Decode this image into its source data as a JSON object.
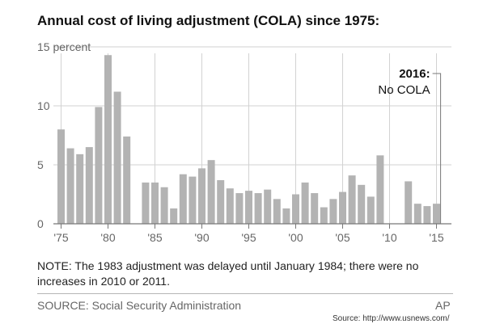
{
  "title": "Annual cost of living adjustment (COLA) since 1975:",
  "chart_data": {
    "type": "bar",
    "x": [
      1975,
      1976,
      1977,
      1978,
      1979,
      1980,
      1981,
      1982,
      1983,
      1984,
      1985,
      1986,
      1987,
      1988,
      1989,
      1990,
      1991,
      1992,
      1993,
      1994,
      1995,
      1996,
      1997,
      1998,
      1999,
      2000,
      2001,
      2002,
      2003,
      2004,
      2005,
      2006,
      2007,
      2008,
      2009,
      2010,
      2011,
      2012,
      2013,
      2014,
      2015
    ],
    "values": [
      8.0,
      6.4,
      5.9,
      6.5,
      9.9,
      14.3,
      11.2,
      7.4,
      0,
      3.5,
      3.5,
      3.1,
      1.3,
      4.2,
      4.0,
      4.7,
      5.4,
      3.7,
      3.0,
      2.6,
      2.8,
      2.6,
      2.9,
      2.1,
      1.3,
      2.5,
      3.5,
      2.6,
      1.4,
      2.1,
      2.7,
      4.1,
      3.3,
      2.3,
      5.8,
      0,
      0,
      3.6,
      1.7,
      1.5,
      1.7
    ],
    "ylim": [
      0,
      15
    ],
    "yticks": [
      0,
      5,
      10,
      15
    ],
    "ytick_labels": [
      "0",
      "5",
      "10",
      "15 percent"
    ],
    "xticks": [
      1975,
      1980,
      1985,
      1990,
      1995,
      2000,
      2005,
      2010,
      2015
    ],
    "xtick_labels": [
      "'75",
      "'80",
      "'85",
      "'90",
      "'95",
      "'00",
      "'05",
      "'10",
      "'15"
    ],
    "grid": true,
    "bar_color": "#b3b3b3",
    "grid_color": "#d2d2d2",
    "annotation": {
      "year": 2016,
      "label": "2016:",
      "text": "No COLA"
    }
  },
  "note": "NOTE: The 1983 adjustment was delayed until January 1984; there were no increases in 2010 or 2011.",
  "source": "SOURCE: Social Security Administration",
  "credit": "AP",
  "url": "Source: http://www.usnews.com/"
}
